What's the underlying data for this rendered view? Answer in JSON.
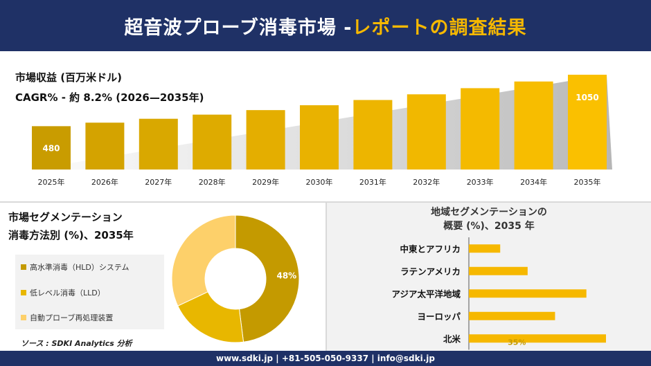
{
  "header": {
    "title_main": "超音波プローブ消毒市場 -",
    "title_highlight": "レポートの調査結果"
  },
  "market": {
    "revenue_label": "市場収益 (百万米ドル)",
    "cagr_label": "CAGR% - 約 8.2% (2026—2035年)"
  },
  "segment": {
    "title_line1": "市場セグメンテーション",
    "title_line2": "消毒方法別 (%)、2035年"
  },
  "region": {
    "title_line1": "地域セグメンテーションの",
    "title_line2": "概要 (%)、2035 年"
  },
  "source": "ソース : SDKI Analytics 分析",
  "footer": {
    "text": "www.sdki.jp | +81-505-050-9337 | info@sdki.jp"
  },
  "colors": {
    "navy": "#1f3166",
    "accent": "#f6b800",
    "dark_gold": "#c49a00",
    "mid_gold": "#e8b700",
    "light_gold": "#fdd06a"
  },
  "chart_data": [
    {
      "type": "bar",
      "categories": [
        "2025年",
        "2026年",
        "2027年",
        "2028年",
        "2029年",
        "2030年",
        "2031年",
        "2032年",
        "2033年",
        "2034年",
        "2035年"
      ],
      "values": [
        480,
        519,
        562,
        608,
        658,
        712,
        770,
        833,
        901,
        975,
        1050
      ],
      "data_labels": {
        "0": "480",
        "10": "1050"
      },
      "title": "市場収益 (百万米ドル)",
      "subtitle": "CAGR% - 約 8.2% (2026—2035年)",
      "ylim": [
        0,
        1100
      ],
      "grid": false
    },
    {
      "type": "pie",
      "donut": true,
      "labels": [
        "高水準消毒（HLD）システム",
        "低レベル消毒（LLD）",
        "自動プローブ再処理装置"
      ],
      "values": [
        48,
        20,
        32
      ],
      "data_labels": {
        "0": "48%"
      },
      "colors": [
        "#c49a00",
        "#e8b700",
        "#fdd06a"
      ],
      "legend_position": "left"
    },
    {
      "type": "bar",
      "orientation": "horizontal",
      "title": "地域セグメンテーションの概要 (%)、2035 年",
      "categories": [
        "中東とアフリカ",
        "ラテンアメリカ",
        "アジア太平洋地域",
        "ヨーロッパ",
        "北米"
      ],
      "values": [
        8,
        15,
        30,
        22,
        35
      ],
      "data_labels": {
        "4": "35%"
      },
      "grid": false
    }
  ]
}
